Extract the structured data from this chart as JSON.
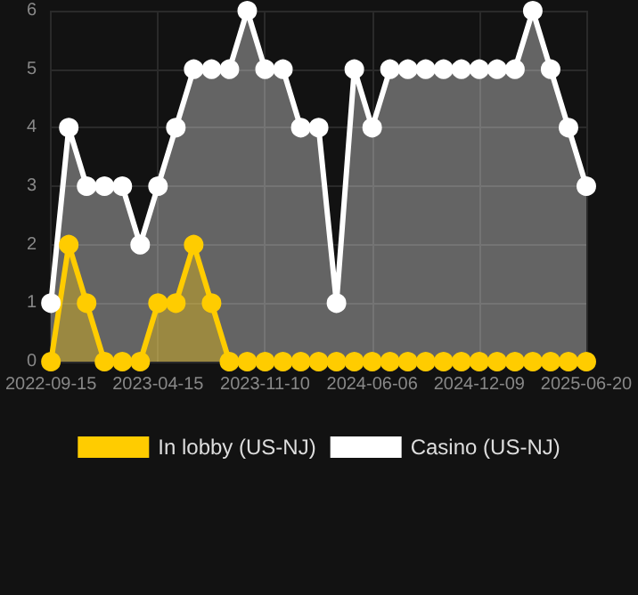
{
  "chart_data": {
    "type": "area",
    "categories": [
      "2022-09-15",
      null,
      null,
      null,
      null,
      null,
      "2023-04-15",
      null,
      null,
      null,
      null,
      null,
      "2023-11-10",
      null,
      null,
      null,
      null,
      null,
      "2024-06-06",
      null,
      null,
      null,
      null,
      null,
      "2024-12-09",
      null,
      null,
      null,
      null,
      null,
      "2025-06-20"
    ],
    "series": [
      {
        "name": "In lobby (US-NJ)",
        "color": "#ffcc00",
        "values": [
          0,
          2,
          1,
          0,
          0,
          0,
          1,
          1,
          2,
          1,
          0,
          0,
          0,
          0,
          0,
          0,
          0,
          0,
          0,
          0,
          0,
          0,
          0,
          0,
          0,
          0,
          0,
          0,
          0,
          0,
          0
        ]
      },
      {
        "name": "Casino (US-NJ)",
        "color": "#ffffff",
        "values": [
          1,
          4,
          3,
          3,
          3,
          2,
          3,
          4,
          5,
          5,
          5,
          6,
          5,
          5,
          4,
          4,
          1,
          5,
          4,
          5,
          5,
          5,
          5,
          5,
          5,
          5,
          5,
          6,
          5,
          4,
          3
        ]
      }
    ],
    "ylim": [
      0,
      6
    ],
    "yticks": [
      0,
      1,
      2,
      3,
      4,
      5,
      6
    ],
    "grid": true,
    "legend": "bottom",
    "marker": "circle"
  }
}
